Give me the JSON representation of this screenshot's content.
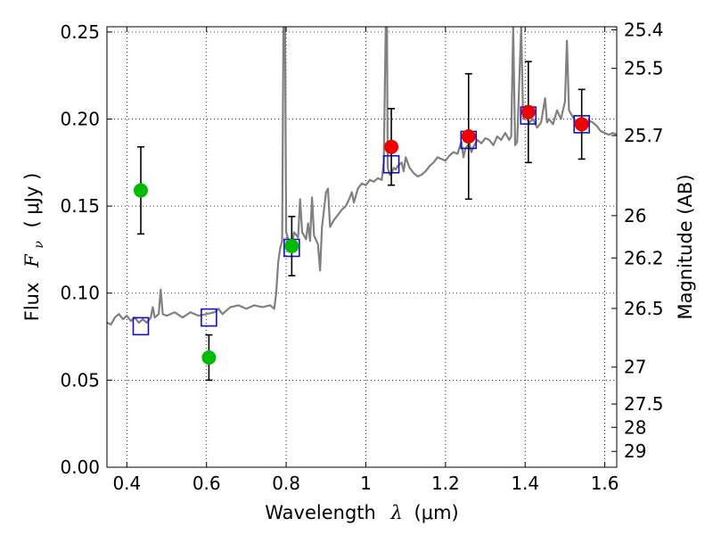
{
  "chart_data": {
    "type": "scatter",
    "xlabel": "Wavelength",
    "xlabel_symbol": "λ",
    "xlabel_unit": "(μm)",
    "ylabel": "Flux",
    "ylabel_symbol": "F",
    "ylabel_sub": "ν",
    "ylabel_unit": "( μJy )",
    "ylabel_right": "Magnitude (AB)",
    "xlim": [
      0.35,
      1.63
    ],
    "ylim": [
      0.0,
      0.253
    ],
    "grid": true,
    "x_ticks": [
      0.4,
      0.6,
      0.8,
      1.0,
      1.2,
      1.4,
      1.6
    ],
    "x_tick_labels": [
      "0.4",
      "0.6",
      "0.8",
      "1",
      "1.2",
      "1.4",
      "1.6"
    ],
    "y_ticks": [
      0.0,
      0.05,
      0.1,
      0.15,
      0.2,
      0.25
    ],
    "y_tick_labels": [
      "0.00",
      "0.05",
      "0.10",
      "0.15",
      "0.20",
      "0.25"
    ],
    "right_ticks": [
      {
        "label": "25.4",
        "flux": 0.2512
      },
      {
        "label": "25.5",
        "flux": 0.2291
      },
      {
        "label": "25.7",
        "flux": 0.1905
      },
      {
        "label": "26",
        "flux": 0.1445
      },
      {
        "label": "26.2",
        "flux": 0.1202
      },
      {
        "label": "26.5",
        "flux": 0.0912
      },
      {
        "label": "27",
        "flux": 0.0575
      },
      {
        "label": "27.5",
        "flux": 0.0363
      },
      {
        "label": "28",
        "flux": 0.0229
      },
      {
        "label": "29",
        "flux": 0.0091
      }
    ],
    "colors": {
      "spectrum": "#808080",
      "model_box": "#1010cc",
      "obs_blue": "#00bb00",
      "obs_red": "#ee0000",
      "errorbar": "#000000",
      "grid": "#000000"
    },
    "spectrum": [
      [
        0.35,
        0.083
      ],
      [
        0.36,
        0.082
      ],
      [
        0.37,
        0.086
      ],
      [
        0.38,
        0.088
      ],
      [
        0.39,
        0.085
      ],
      [
        0.4,
        0.087
      ],
      [
        0.41,
        0.084
      ],
      [
        0.42,
        0.086
      ],
      [
        0.43,
        0.083
      ],
      [
        0.44,
        0.085
      ],
      [
        0.45,
        0.083
      ],
      [
        0.46,
        0.086
      ],
      [
        0.465,
        0.092
      ],
      [
        0.47,
        0.086
      ],
      [
        0.48,
        0.088
      ],
      [
        0.485,
        0.102
      ],
      [
        0.49,
        0.088
      ],
      [
        0.5,
        0.087
      ],
      [
        0.52,
        0.089
      ],
      [
        0.54,
        0.086
      ],
      [
        0.56,
        0.089
      ],
      [
        0.58,
        0.087
      ],
      [
        0.6,
        0.088
      ],
      [
        0.62,
        0.089
      ],
      [
        0.63,
        0.091
      ],
      [
        0.64,
        0.088
      ],
      [
        0.66,
        0.092
      ],
      [
        0.68,
        0.093
      ],
      [
        0.7,
        0.091
      ],
      [
        0.72,
        0.093
      ],
      [
        0.74,
        0.092
      ],
      [
        0.76,
        0.093
      ],
      [
        0.77,
        0.091
      ],
      [
        0.775,
        0.1
      ],
      [
        0.78,
        0.118
      ],
      [
        0.785,
        0.126
      ],
      [
        0.79,
        0.13
      ],
      [
        0.793,
        0.253
      ],
      [
        0.797,
        0.253
      ],
      [
        0.8,
        0.135
      ],
      [
        0.81,
        0.127
      ],
      [
        0.815,
        0.129
      ],
      [
        0.82,
        0.135
      ],
      [
        0.83,
        0.132
      ],
      [
        0.835,
        0.154
      ],
      [
        0.84,
        0.135
      ],
      [
        0.85,
        0.131
      ],
      [
        0.855,
        0.14
      ],
      [
        0.86,
        0.13
      ],
      [
        0.865,
        0.155
      ],
      [
        0.87,
        0.133
      ],
      [
        0.88,
        0.128
      ],
      [
        0.885,
        0.113
      ],
      [
        0.89,
        0.138
      ],
      [
        0.9,
        0.158
      ],
      [
        0.905,
        0.16
      ],
      [
        0.91,
        0.138
      ],
      [
        0.92,
        0.142
      ],
      [
        0.93,
        0.145
      ],
      [
        0.94,
        0.148
      ],
      [
        0.95,
        0.15
      ],
      [
        0.96,
        0.155
      ],
      [
        0.965,
        0.158
      ],
      [
        0.97,
        0.152
      ],
      [
        0.98,
        0.16
      ],
      [
        0.99,
        0.163
      ],
      [
        1.0,
        0.162
      ],
      [
        1.01,
        0.165
      ],
      [
        1.02,
        0.164
      ],
      [
        1.03,
        0.166
      ],
      [
        1.04,
        0.165
      ],
      [
        1.045,
        0.175
      ],
      [
        1.05,
        0.253
      ],
      [
        1.053,
        0.253
      ],
      [
        1.055,
        0.172
      ],
      [
        1.06,
        0.168
      ],
      [
        1.065,
        0.169
      ],
      [
        1.07,
        0.172
      ],
      [
        1.075,
        0.171
      ],
      [
        1.08,
        0.173
      ],
      [
        1.09,
        0.175
      ],
      [
        1.095,
        0.17
      ],
      [
        1.1,
        0.178
      ],
      [
        1.11,
        0.172
      ],
      [
        1.12,
        0.169
      ],
      [
        1.13,
        0.167
      ],
      [
        1.14,
        0.168
      ],
      [
        1.15,
        0.17
      ],
      [
        1.16,
        0.173
      ],
      [
        1.17,
        0.175
      ],
      [
        1.18,
        0.178
      ],
      [
        1.19,
        0.177
      ],
      [
        1.2,
        0.176
      ],
      [
        1.21,
        0.179
      ],
      [
        1.22,
        0.181
      ],
      [
        1.23,
        0.18
      ],
      [
        1.24,
        0.187
      ],
      [
        1.245,
        0.178
      ],
      [
        1.25,
        0.183
      ],
      [
        1.26,
        0.186
      ],
      [
        1.265,
        0.181
      ],
      [
        1.27,
        0.184
      ],
      [
        1.28,
        0.188
      ],
      [
        1.29,
        0.186
      ],
      [
        1.3,
        0.189
      ],
      [
        1.31,
        0.188
      ],
      [
        1.32,
        0.185
      ],
      [
        1.33,
        0.19
      ],
      [
        1.34,
        0.188
      ],
      [
        1.35,
        0.192
      ],
      [
        1.36,
        0.188
      ],
      [
        1.365,
        0.19
      ],
      [
        1.37,
        0.253
      ],
      [
        1.375,
        0.185
      ],
      [
        1.38,
        0.187
      ],
      [
        1.39,
        0.253
      ],
      [
        1.395,
        0.2
      ],
      [
        1.4,
        0.202
      ],
      [
        1.41,
        0.198
      ],
      [
        1.42,
        0.2
      ],
      [
        1.43,
        0.195
      ],
      [
        1.44,
        0.198
      ],
      [
        1.45,
        0.212
      ],
      [
        1.455,
        0.198
      ],
      [
        1.46,
        0.2
      ],
      [
        1.47,
        0.197
      ],
      [
        1.48,
        0.205
      ],
      [
        1.49,
        0.2
      ],
      [
        1.5,
        0.21
      ],
      [
        1.505,
        0.245
      ],
      [
        1.51,
        0.205
      ],
      [
        1.52,
        0.201
      ],
      [
        1.53,
        0.198
      ],
      [
        1.54,
        0.2
      ],
      [
        1.55,
        0.197
      ],
      [
        1.56,
        0.199
      ],
      [
        1.57,
        0.198
      ],
      [
        1.58,
        0.196
      ],
      [
        1.59,
        0.193
      ],
      [
        1.6,
        0.192
      ],
      [
        1.61,
        0.191
      ],
      [
        1.62,
        0.192
      ],
      [
        1.63,
        0.191
      ]
    ],
    "model_points": [
      {
        "x": 0.435,
        "y": 0.081
      },
      {
        "x": 0.606,
        "y": 0.086
      },
      {
        "x": 0.814,
        "y": 0.126
      },
      {
        "x": 1.064,
        "y": 0.174
      },
      {
        "x": 1.258,
        "y": 0.188
      },
      {
        "x": 1.408,
        "y": 0.202
      },
      {
        "x": 1.542,
        "y": 0.197
      }
    ],
    "observed_points": [
      {
        "x": 0.435,
        "y": 0.159,
        "yerr": 0.025,
        "color": "green"
      },
      {
        "x": 0.606,
        "y": 0.063,
        "yerr": 0.013,
        "color": "green"
      },
      {
        "x": 0.814,
        "y": 0.127,
        "yerr": 0.017,
        "color": "green"
      },
      {
        "x": 1.064,
        "y": 0.184,
        "yerr": 0.022,
        "color": "red"
      },
      {
        "x": 1.258,
        "y": 0.19,
        "yerr": 0.036,
        "color": "red"
      },
      {
        "x": 1.408,
        "y": 0.204,
        "yerr": 0.029,
        "color": "red"
      },
      {
        "x": 1.542,
        "y": 0.197,
        "yerr": 0.02,
        "color": "red"
      }
    ]
  }
}
